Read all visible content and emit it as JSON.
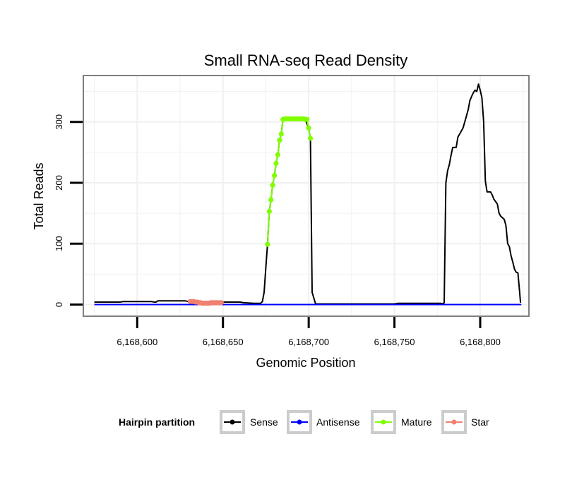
{
  "chart_data": {
    "type": "line",
    "title": "Small RNA-seq Read Density",
    "xlabel": "Genomic Position",
    "ylabel": "Total Reads",
    "xlim": [
      6168569,
      6168828
    ],
    "ylim": [
      -18,
      375
    ],
    "x_ticks": [
      6168600,
      6168650,
      6168700,
      6168750,
      6168800
    ],
    "x_tick_labels": [
      "6,168,600",
      "6,168,650",
      "6,168,700",
      "6,168,750",
      "6,168,800"
    ],
    "y_ticks": [
      0,
      100,
      200,
      300
    ],
    "y_tick_labels": [
      "0",
      "100",
      "200",
      "300"
    ],
    "grid": true,
    "colors": {
      "sense": "#000000",
      "antisense": "#0000ff",
      "mature": "#7fff00",
      "star": "#f08070",
      "grid": "#f0f0f0",
      "frame": "#7f7f7f",
      "legend_key_border": "#cccccc"
    },
    "legend": {
      "title": "Hairpin partition",
      "placement": "bottom",
      "entries": [
        {
          "label": "Sense",
          "color": "#000000"
        },
        {
          "label": "Antisense",
          "color": "#0000ff"
        },
        {
          "label": "Mature",
          "color": "#7fff00"
        },
        {
          "label": "Star",
          "color": "#f08070"
        }
      ]
    },
    "series": [
      {
        "name": "Sense",
        "color": "#000000",
        "points": [
          [
            6168575,
            4
          ],
          [
            6168590,
            4
          ],
          [
            6168592,
            5
          ],
          [
            6168595,
            5
          ],
          [
            6168608,
            5
          ],
          [
            6168610,
            4
          ],
          [
            6168611,
            4
          ],
          [
            6168612,
            6
          ],
          [
            6168628,
            6
          ],
          [
            6168630,
            5
          ],
          [
            6168648,
            5
          ],
          [
            6168650,
            4
          ],
          [
            6168660,
            4
          ],
          [
            6168662,
            3
          ],
          [
            6168668,
            2
          ],
          [
            6168672,
            2
          ],
          [
            6168673,
            5
          ],
          [
            6168674,
            20
          ],
          [
            6168675,
            60
          ],
          [
            6168676,
            100
          ],
          [
            6168677,
            153
          ],
          [
            6168678,
            172
          ],
          [
            6168679,
            196
          ],
          [
            6168680,
            212
          ],
          [
            6168681,
            232
          ],
          [
            6168682,
            246
          ],
          [
            6168683,
            270
          ],
          [
            6168684,
            280
          ],
          [
            6168685,
            304
          ],
          [
            6168686,
            305
          ],
          [
            6168690,
            305
          ],
          [
            6168695,
            305
          ],
          [
            6168698,
            304
          ],
          [
            6168700,
            290
          ],
          [
            6168701,
            273
          ],
          [
            6168702,
            20
          ],
          [
            6168704,
            1
          ],
          [
            6168720,
            1
          ],
          [
            6168750,
            1
          ],
          [
            6168752,
            2
          ],
          [
            6168777,
            2
          ],
          [
            6168778,
            1
          ],
          [
            6168779,
            3
          ],
          [
            6168780,
            200
          ],
          [
            6168781,
            220
          ],
          [
            6168782,
            230
          ],
          [
            6168783,
            245
          ],
          [
            6168784,
            258
          ],
          [
            6168786,
            258
          ],
          [
            6168787,
            275
          ],
          [
            6168789,
            285
          ],
          [
            6168790,
            290
          ],
          [
            6168792,
            310
          ],
          [
            6168793,
            320
          ],
          [
            6168794,
            335
          ],
          [
            6168795,
            342
          ],
          [
            6168796,
            348
          ],
          [
            6168797,
            352
          ],
          [
            6168798,
            350
          ],
          [
            6168799,
            362
          ],
          [
            6168800,
            352
          ],
          [
            6168801,
            340
          ],
          [
            6168802,
            300
          ],
          [
            6168803,
            203
          ],
          [
            6168804,
            185
          ],
          [
            6168806,
            185
          ],
          [
            6168807,
            180
          ],
          [
            6168808,
            173
          ],
          [
            6168810,
            165
          ],
          [
            6168811,
            150
          ],
          [
            6168812,
            145
          ],
          [
            6168814,
            140
          ],
          [
            6168815,
            130
          ],
          [
            6168816,
            100
          ],
          [
            6168817,
            95
          ],
          [
            6168818,
            80
          ],
          [
            6168819,
            70
          ],
          [
            6168820,
            58
          ],
          [
            6168821,
            53
          ],
          [
            6168822,
            52
          ],
          [
            6168823,
            20
          ],
          [
            6168823.5,
            3
          ]
        ]
      },
      {
        "name": "Antisense",
        "color": "#0000ff",
        "points": [
          [
            6168575,
            0
          ],
          [
            6168824,
            0
          ]
        ]
      },
      {
        "name": "Mature",
        "color": "#7fff00",
        "points": [
          [
            6168676,
            99
          ],
          [
            6168677,
            153
          ],
          [
            6168678,
            172
          ],
          [
            6168679,
            196
          ],
          [
            6168680,
            212
          ],
          [
            6168681,
            232
          ],
          [
            6168682,
            246
          ],
          [
            6168683,
            270
          ],
          [
            6168684,
            280
          ],
          [
            6168685,
            304
          ],
          [
            6168686,
            305
          ],
          [
            6168687,
            305
          ],
          [
            6168688,
            305
          ],
          [
            6168689,
            305
          ],
          [
            6168690,
            305
          ],
          [
            6168691,
            305
          ],
          [
            6168692,
            305
          ],
          [
            6168693,
            305
          ],
          [
            6168694,
            305
          ],
          [
            6168695,
            305
          ],
          [
            6168696,
            305
          ],
          [
            6168697,
            305
          ],
          [
            6168698,
            304
          ],
          [
            6168699,
            304
          ],
          [
            6168700,
            290
          ],
          [
            6168701,
            273
          ]
        ]
      },
      {
        "name": "Star",
        "color": "#f08070",
        "points": [
          [
            6168631,
            5
          ],
          [
            6168632,
            5
          ],
          [
            6168633,
            5
          ],
          [
            6168634,
            4
          ],
          [
            6168635,
            4
          ],
          [
            6168636,
            3
          ],
          [
            6168637,
            3
          ],
          [
            6168638,
            2
          ],
          [
            6168639,
            2
          ],
          [
            6168640,
            2
          ],
          [
            6168641,
            2
          ],
          [
            6168642,
            2
          ],
          [
            6168643,
            3
          ],
          [
            6168644,
            3
          ],
          [
            6168645,
            3
          ],
          [
            6168646,
            3
          ],
          [
            6168647,
            3
          ],
          [
            6168648,
            3
          ],
          [
            6168649,
            3
          ]
        ]
      }
    ]
  }
}
